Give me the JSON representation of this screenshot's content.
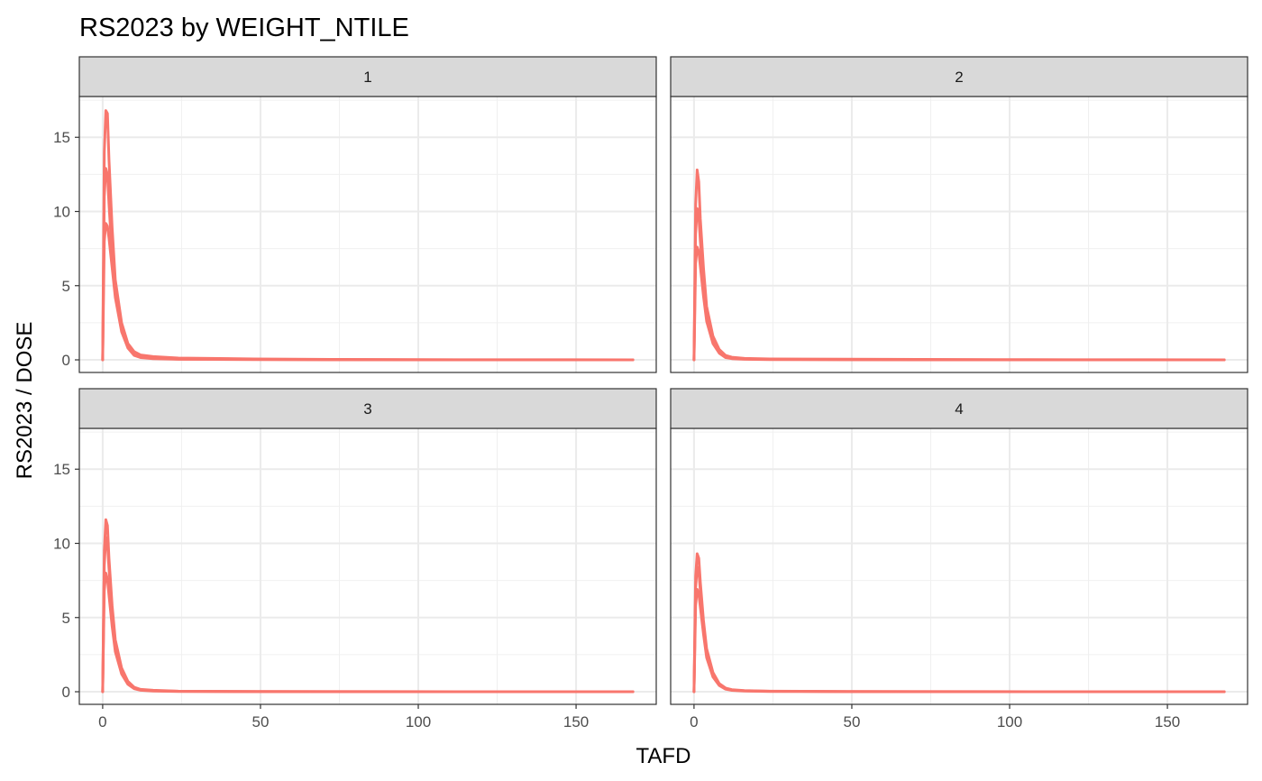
{
  "chart_data": {
    "type": "line",
    "title": "RS2023 by WEIGHT_NTILE",
    "xlabel": "TAFD",
    "ylabel": "RS2023 / DOSE",
    "xlim": [
      -7.4,
      175.4
    ],
    "ylim": [
      -0.85,
      17.75
    ],
    "x_ticks": [
      0,
      50,
      100,
      150
    ],
    "y_ticks": [
      0,
      5,
      10,
      15
    ],
    "grid": true,
    "facet_by": "WEIGHT_NTILE",
    "line_color": "#F8766D",
    "panels": [
      {
        "label": "1",
        "series": [
          {
            "x": [
              0,
              0.5,
              1,
              1.5,
              2,
              3,
              4,
              6,
              8,
              10,
              12,
              16,
              24,
              48,
              72,
              96,
              120,
              144,
              168
            ],
            "y": [
              0,
              14.0,
              16.8,
              16.6,
              13.5,
              8.9,
              5.4,
              2.5,
              1.1,
              0.55,
              0.33,
              0.22,
              0.12,
              0.06,
              0.03,
              0.02,
              0.01,
              0.005,
              0
            ]
          },
          {
            "x": [
              0,
              0.5,
              1,
              1.5,
              2,
              3,
              4,
              6,
              8,
              10,
              12,
              16,
              24,
              48,
              72,
              96,
              120,
              144,
              168
            ],
            "y": [
              0,
              11.0,
              12.9,
              12.5,
              10.5,
              7.0,
              4.6,
              2.1,
              0.85,
              0.35,
              0.2,
              0.12,
              0.05,
              0.03,
              0.01,
              0.005,
              0,
              0,
              0
            ]
          },
          {
            "x": [
              0,
              0.5,
              1,
              1.5,
              2,
              3,
              4,
              6,
              8,
              10,
              12,
              16,
              24,
              48,
              72,
              96,
              120,
              144,
              168
            ],
            "y": [
              0,
              8.0,
              9.2,
              9.0,
              8.2,
              6.2,
              4.2,
              1.9,
              0.8,
              0.3,
              0.15,
              0.08,
              0.04,
              0.02,
              0.01,
              0,
              0,
              0,
              0
            ]
          }
        ]
      },
      {
        "label": "2",
        "series": [
          {
            "x": [
              0,
              0.5,
              1,
              1.5,
              2,
              3,
              4,
              6,
              8,
              10,
              12,
              16,
              24,
              48,
              72,
              96,
              120,
              144,
              168
            ],
            "y": [
              0,
              10.5,
              12.8,
              12.0,
              9.5,
              6.2,
              3.6,
              1.6,
              0.7,
              0.3,
              0.18,
              0.1,
              0.06,
              0.05,
              0.03,
              0.02,
              0.01,
              0.005,
              0
            ]
          },
          {
            "x": [
              0,
              0.5,
              1,
              1.5,
              2,
              3,
              4,
              6,
              8,
              10,
              12,
              16,
              24,
              48,
              72,
              96,
              120,
              144,
              168
            ],
            "y": [
              0,
              8.5,
              10.2,
              9.7,
              8.0,
              5.2,
              3.0,
              1.3,
              0.55,
              0.2,
              0.12,
              0.06,
              0.03,
              0.02,
              0.01,
              0,
              0,
              0,
              0
            ]
          },
          {
            "x": [
              0,
              0.5,
              1,
              1.5,
              2,
              3,
              4,
              6,
              8,
              10,
              12,
              16,
              24,
              48,
              72,
              96,
              120,
              144,
              168
            ],
            "y": [
              0,
              6.5,
              7.6,
              7.3,
              6.3,
              4.3,
              2.6,
              1.1,
              0.45,
              0.15,
              0.08,
              0.04,
              0.02,
              0.01,
              0,
              0,
              0,
              0,
              0
            ]
          }
        ]
      },
      {
        "label": "3",
        "series": [
          {
            "x": [
              0,
              0.5,
              1,
              1.5,
              2,
              3,
              4,
              6,
              8,
              10,
              12,
              16,
              24,
              48,
              72,
              96,
              120,
              144,
              168
            ],
            "y": [
              0,
              9.5,
              11.6,
              11.2,
              9.0,
              5.8,
              3.5,
              1.6,
              0.7,
              0.3,
              0.16,
              0.1,
              0.04,
              0.02,
              0.01,
              0.005,
              0,
              0,
              0
            ]
          },
          {
            "x": [
              0,
              0.5,
              1,
              1.5,
              2,
              3,
              4,
              6,
              8,
              10,
              12,
              16,
              24,
              48,
              72,
              96,
              120,
              144,
              168
            ],
            "y": [
              0,
              8.5,
              10.4,
              10.0,
              8.3,
              5.5,
              3.2,
              1.4,
              0.6,
              0.25,
              0.12,
              0.07,
              0.03,
              0.01,
              0.005,
              0,
              0,
              0,
              0
            ]
          },
          {
            "x": [
              0,
              0.5,
              1,
              1.5,
              2,
              3,
              4,
              6,
              8,
              10,
              12,
              16,
              24,
              48,
              72,
              96,
              120,
              144,
              168
            ],
            "y": [
              0,
              6.8,
              8.0,
              7.6,
              6.5,
              4.4,
              2.7,
              1.2,
              0.5,
              0.2,
              0.1,
              0.05,
              0.02,
              0.01,
              0,
              0,
              0,
              0,
              0
            ]
          }
        ]
      },
      {
        "label": "4",
        "series": [
          {
            "x": [
              0,
              0.5,
              1,
              1.5,
              2,
              3,
              4,
              6,
              8,
              10,
              12,
              16,
              24,
              48,
              72,
              96,
              120,
              144,
              168
            ],
            "y": [
              0,
              7.8,
              9.3,
              9.0,
              7.4,
              4.8,
              2.9,
              1.3,
              0.55,
              0.25,
              0.14,
              0.08,
              0.04,
              0.02,
              0.01,
              0.005,
              0,
              0,
              0
            ]
          },
          {
            "x": [
              0,
              0.5,
              1,
              1.5,
              2,
              3,
              4,
              6,
              8,
              10,
              12,
              16,
              24,
              48,
              72,
              96,
              120,
              144,
              168
            ],
            "y": [
              0,
              7.0,
              8.4,
              8.1,
              6.8,
              4.4,
              2.6,
              1.15,
              0.48,
              0.2,
              0.11,
              0.06,
              0.03,
              0.01,
              0.005,
              0,
              0,
              0,
              0
            ]
          },
          {
            "x": [
              0,
              0.5,
              1,
              1.5,
              2,
              3,
              4,
              6,
              8,
              10,
              12,
              16,
              24,
              48,
              72,
              96,
              120,
              144,
              168
            ],
            "y": [
              0,
              5.8,
              6.9,
              6.6,
              5.7,
              3.9,
              2.3,
              1.0,
              0.42,
              0.17,
              0.09,
              0.05,
              0.02,
              0.01,
              0,
              0,
              0,
              0,
              0
            ]
          }
        ]
      }
    ]
  }
}
